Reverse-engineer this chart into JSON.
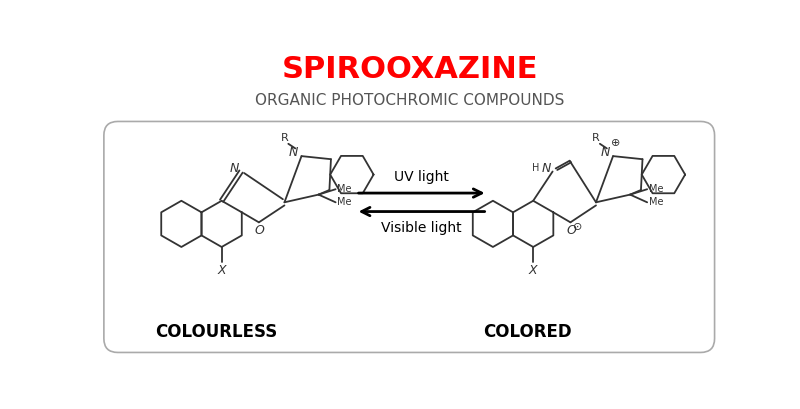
{
  "title": "SPIROOXAZINE",
  "subtitle": "ORGANIC PHOTOCHROMIC COMPOUNDS",
  "title_color": "#FF0000",
  "subtitle_color": "#555555",
  "label_left": "COLOURLESS",
  "label_right": "COLORED",
  "uv_label": "UV light",
  "vis_label": "Visible light",
  "bg_color": "#FFFFFF",
  "box_color": "#AAAAAA",
  "text_color": "#000000",
  "line_color": "#333333"
}
